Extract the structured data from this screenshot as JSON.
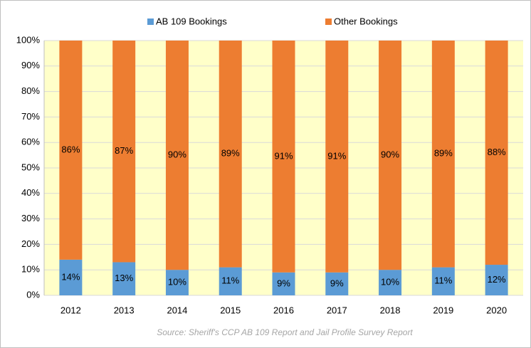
{
  "chart_data": {
    "type": "stacked_bar",
    "categories": [
      "2012",
      "2013",
      "2014",
      "2015",
      "2016",
      "2017",
      "2018",
      "2019",
      "2020"
    ],
    "series": [
      {
        "name": "AB 109 Bookings",
        "color": "#5b9bd5",
        "values": [
          14,
          13,
          10,
          11,
          9,
          9,
          10,
          11,
          12
        ],
        "value_labels": [
          "14%",
          "13%",
          "10%",
          "11%",
          "9%",
          "9%",
          "10%",
          "11%",
          "12%"
        ]
      },
      {
        "name": "Other Bookings",
        "color": "#ed7d31",
        "values": [
          86,
          87,
          90,
          89,
          91,
          91,
          90,
          89,
          88
        ],
        "value_labels": [
          "86%",
          "87%",
          "90%",
          "89%",
          "91%",
          "91%",
          "90%",
          "89%",
          "88%"
        ]
      }
    ],
    "ylim": [
      0,
      100
    ],
    "yticks": [
      {
        "value": 0,
        "label": "0%"
      },
      {
        "value": 10,
        "label": "10%"
      },
      {
        "value": 20,
        "label": "20%"
      },
      {
        "value": 30,
        "label": "30%"
      },
      {
        "value": 40,
        "label": "40%"
      },
      {
        "value": 50,
        "label": "50%"
      },
      {
        "value": 60,
        "label": "60%"
      },
      {
        "value": 70,
        "label": "70%"
      },
      {
        "value": 80,
        "label": "80%"
      },
      {
        "value": 90,
        "label": "90%"
      },
      {
        "value": 100,
        "label": "100%"
      }
    ],
    "grid": true,
    "plot_background": "#ffffc9",
    "legend": "top",
    "source": "Source: Sheriff's CCP AB 109 Report and Jail Profile Survey Report"
  }
}
